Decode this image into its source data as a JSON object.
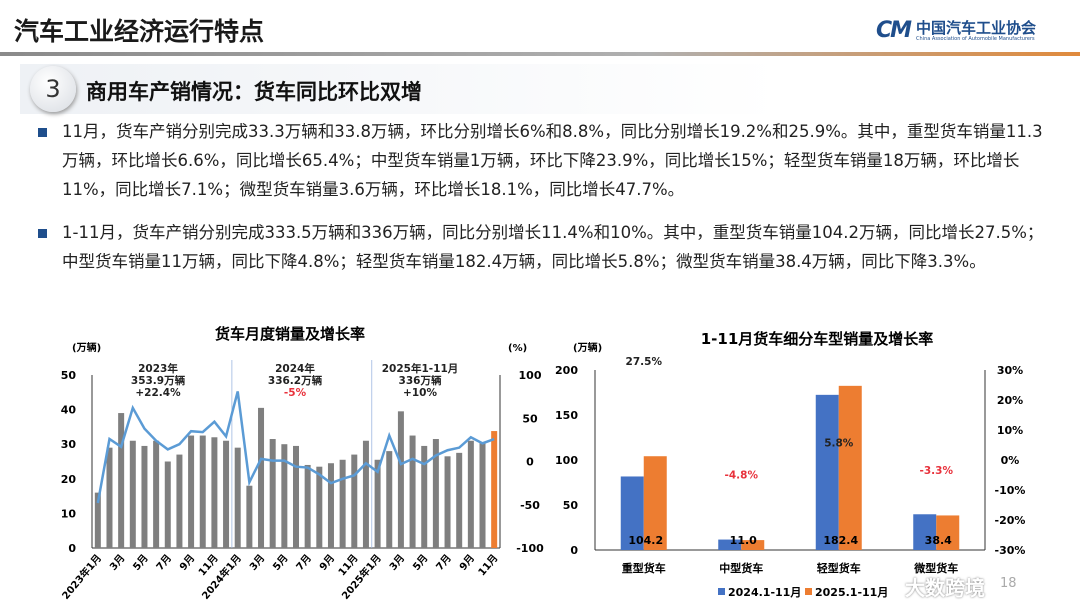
{
  "header": {
    "title": "汽车工业经济运行特点",
    "logo_mark": "CM",
    "logo_cn": "中国汽车工业协会",
    "logo_en": "China Association of Automobile Manufacturers"
  },
  "section": {
    "number": "3",
    "title": "商用车产销情况：货车同比环比双增"
  },
  "bullets": [
    "11月，货车产销分别完成33.3万辆和33.8万辆，环比分别增长6%和8.8%，同比分别增长19.2%和25.9%。其中，重型货车销量11.3万辆，环比增长6.6%，同比增长65.4%；中型货车销量1万辆，环比下降23.9%，同比增长15%；轻型货车销量18万辆，环比增长11%，同比增长7.1%；微型货车销量3.6万辆，环比增长18.1%，同比增长47.7%。",
    "1-11月，货车产销分别完成333.5万辆和336万辆，同比分别增长11.4%和10%。其中，重型货车销量104.2万辆，同比增长27.5%；中型货车销量11万辆，同比下降4.8%；轻型货车销量182.4万辆，同比增长5.8%；微型货车销量38.4万辆，同比下降3.3%。"
  ],
  "page_number": "18",
  "watermark": "大数跨境",
  "colors": {
    "bar_gray": "#7f7f7f",
    "bar_orange": "#ed7d31",
    "line_blue": "#5b9bd5",
    "bar_blue": "#4472c4",
    "negative_red": "#e8323c",
    "brand": "#1f4e8c"
  },
  "chart_data": [
    {
      "type": "bar+line",
      "title": "货车月度销量及增长率",
      "ylabel": "(万辆)",
      "y2label": "(%)",
      "ylim": [
        0,
        50
      ],
      "y2lim": [
        -100,
        100
      ],
      "yticks": [
        "0",
        "10",
        "20",
        "30",
        "40",
        "50"
      ],
      "y2ticks": [
        "-100",
        "-50",
        "0",
        "50",
        "100"
      ],
      "x_tick_labels": [
        "2023年1月",
        "3月",
        "5月",
        "7月",
        "9月",
        "11月",
        "2024年1月",
        "3月",
        "5月",
        "7月",
        "9月",
        "11月",
        "2025年1月",
        "3月",
        "5月",
        "7月",
        "9月",
        "11月"
      ],
      "annotations": [
        {
          "lines": [
            "2023年",
            "353.9万辆",
            "+22.4%"
          ]
        },
        {
          "lines": [
            "2024年",
            "336.2万辆",
            "-5%"
          ]
        },
        {
          "lines": [
            "2025年1-11月",
            "336万辆",
            "+10%"
          ]
        }
      ],
      "sales": [
        16,
        29,
        39,
        31,
        29.5,
        31,
        25,
        27,
        32.5,
        32.5,
        32,
        31,
        29,
        18,
        40.5,
        31.5,
        30,
        29.5,
        24,
        23.5,
        24.5,
        25.5,
        27,
        31,
        25.5,
        28,
        39.5,
        32.5,
        29.5,
        31.5,
        26.5,
        27.5,
        31,
        30.5,
        33.8
      ],
      "growth": [
        -48,
        26,
        17,
        62,
        38,
        24,
        14,
        20,
        35,
        34,
        46,
        29,
        81,
        -24,
        3,
        1,
        1,
        -6,
        -7,
        -15,
        -25,
        -20,
        -16,
        -2,
        -12,
        30,
        -3,
        3,
        -3,
        7,
        13,
        16,
        28,
        21,
        25.9
      ]
    },
    {
      "type": "bar",
      "title": "1-11月货车细分车型销量及增长率",
      "ylabel": "(万辆)",
      "ylim": [
        0,
        200
      ],
      "y2lim": [
        -30,
        30
      ],
      "yticks": [
        "0",
        "50",
        "100",
        "150",
        "200"
      ],
      "y2ticks": [
        "-30%",
        "-20%",
        "-10%",
        "0%",
        "10%",
        "20%",
        "30%"
      ],
      "categories": [
        "重型货车",
        "中型货车",
        "轻型货车",
        "微型货车"
      ],
      "series": [
        {
          "name": "2024.1-11月",
          "values": [
            81.7,
            11.6,
            172.4,
            39.7
          ]
        },
        {
          "name": "2025.1-11月",
          "values": [
            104.2,
            11.0,
            182.4,
            38.4
          ]
        }
      ],
      "value_labels": [
        "104.2",
        "11.0",
        "182.4",
        "38.4"
      ],
      "growth": [
        27.5,
        -4.8,
        5.8,
        -3.3
      ],
      "growth_labels": [
        "27.5%",
        "-4.8%",
        "5.8%",
        "-3.3%"
      ],
      "legend": "bottom"
    }
  ]
}
